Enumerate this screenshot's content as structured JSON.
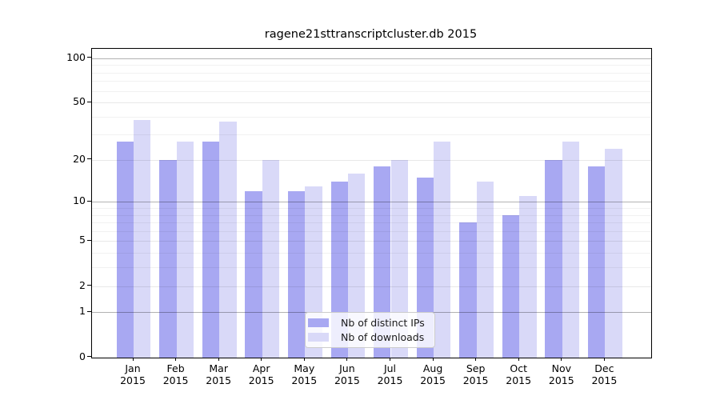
{
  "chart_data": {
    "type": "bar",
    "title": "ragene21sttranscriptcluster.db 2015",
    "categories": [
      "Jan",
      "Feb",
      "Mar",
      "Apr",
      "May",
      "Jun",
      "Jul",
      "Aug",
      "Sep",
      "Oct",
      "Nov",
      "Dec"
    ],
    "year": "2015",
    "series": [
      {
        "name": "Nb of distinct IPs",
        "color": "#a8a8f2",
        "values": [
          27,
          20,
          27,
          12,
          12,
          14,
          18,
          15,
          7,
          8,
          20,
          18
        ]
      },
      {
        "name": "Nb of downloads",
        "color": "#d9d9f8",
        "values": [
          38,
          27,
          37,
          20,
          13,
          16,
          20,
          27,
          14,
          11,
          27,
          24
        ]
      }
    ],
    "yscale": "log1p",
    "ylim": [
      0,
      115
    ],
    "yticks": [
      100,
      50,
      20,
      10,
      5,
      2,
      1,
      0
    ],
    "decade_gridlines": [
      1,
      10,
      100
    ],
    "minor_gridlines": [
      3,
      4,
      6,
      7,
      8,
      9,
      30,
      40,
      60,
      70,
      80,
      90
    ],
    "grid": true,
    "legend_position": "lower center",
    "background_color": "#ffffff"
  }
}
